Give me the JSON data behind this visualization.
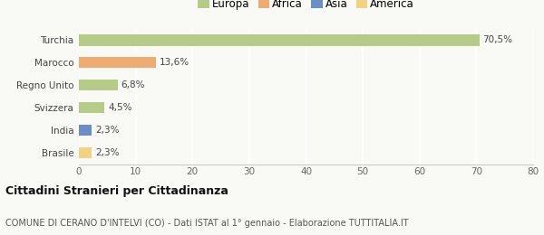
{
  "categories": [
    "Brasile",
    "India",
    "Svizzera",
    "Regno Unito",
    "Marocco",
    "Turchia"
  ],
  "values": [
    2.3,
    2.3,
    4.5,
    6.8,
    13.6,
    70.5
  ],
  "labels": [
    "2,3%",
    "2,3%",
    "4,5%",
    "6,8%",
    "13,6%",
    "70,5%"
  ],
  "bar_colors": [
    "#f5d280",
    "#6b8fc4",
    "#b5cc88",
    "#b5cc88",
    "#f0ab72",
    "#b5cc88"
  ],
  "xlim": [
    0,
    80
  ],
  "xticks": [
    0,
    10,
    20,
    30,
    40,
    50,
    60,
    70,
    80
  ],
  "legend_labels": [
    "Europa",
    "Africa",
    "Asia",
    "America"
  ],
  "legend_colors": [
    "#b5cc88",
    "#f0ab72",
    "#6b8fc4",
    "#f5d280"
  ],
  "title": "Cittadini Stranieri per Cittadinanza",
  "subtitle": "COMUNE DI CERANO D'INTELVI (CO) - Dati ISTAT al 1° gennaio - Elaborazione TUTTITALIA.IT",
  "background_color": "#f9f9f6",
  "grid_color": "#ffffff",
  "bar_height": 0.5
}
